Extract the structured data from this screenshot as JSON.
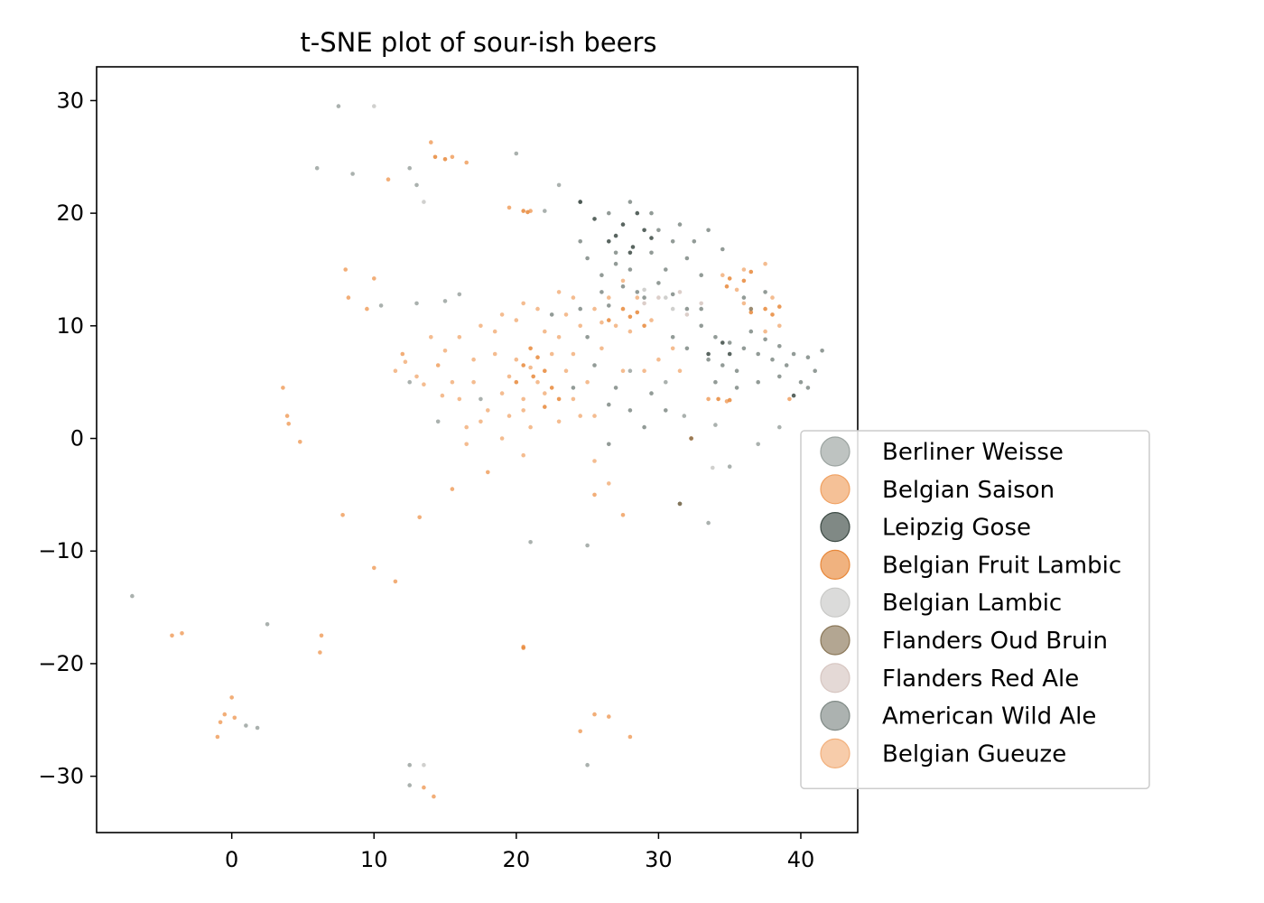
{
  "chart_data": {
    "type": "scatter",
    "title": "t-SNE plot of sour-ish beers",
    "xlabel": "",
    "ylabel": "",
    "xlim": [
      -9.5,
      44
    ],
    "ylim": [
      -35,
      33
    ],
    "x_ticks": [
      0,
      10,
      20,
      30,
      40
    ],
    "y_ticks": [
      30,
      20,
      10,
      0,
      -10,
      -20,
      -30
    ],
    "x_tick_labels": [
      "0",
      "10",
      "20",
      "30",
      "40"
    ],
    "y_tick_labels": [
      "30",
      "20",
      "10",
      "0",
      "−10",
      "−20",
      "−30"
    ],
    "grid": false,
    "legend_position": "right, partly outside the axes",
    "series": [
      {
        "name": "Berliner Weisse",
        "color": "#9ba3a0",
        "points": [
          [
            7.5,
            29.5
          ],
          [
            6,
            24
          ],
          [
            8.5,
            23.5
          ],
          [
            12.5,
            24
          ],
          [
            13,
            22.5
          ],
          [
            20,
            25.3
          ],
          [
            23,
            22.5
          ],
          [
            24.5,
            21
          ],
          [
            22,
            20.2
          ],
          [
            10.5,
            11.8
          ],
          [
            13,
            12
          ],
          [
            15,
            12.2
          ],
          [
            16,
            12.8
          ],
          [
            12.5,
            5
          ],
          [
            17.5,
            3.5
          ],
          [
            14.5,
            1.5
          ],
          [
            21,
            -9.2
          ],
          [
            25,
            -9.5
          ],
          [
            33.5,
            -7.5
          ],
          [
            35,
            -2.5
          ],
          [
            2.5,
            -16.5
          ],
          [
            -7,
            -14
          ],
          [
            1,
            -25.5
          ],
          [
            1.8,
            -25.7
          ],
          [
            12.5,
            -29
          ],
          [
            12.5,
            -30.8
          ],
          [
            25,
            -29
          ],
          [
            28,
            6
          ],
          [
            30.5,
            5
          ],
          [
            31.8,
            2
          ],
          [
            34,
            1.2
          ],
          [
            37,
            -0.5
          ],
          [
            38.5,
            1
          ]
        ]
      },
      {
        "name": "Belgian Saison",
        "color": "#f0a060",
        "points": [
          [
            14,
            26.3
          ],
          [
            15.5,
            25
          ],
          [
            16.5,
            24.5
          ],
          [
            11,
            23
          ],
          [
            19.5,
            20.5
          ],
          [
            21,
            20.2
          ],
          [
            8,
            15
          ],
          [
            10,
            14.2
          ],
          [
            8.2,
            12.5
          ],
          [
            9.5,
            11.5
          ],
          [
            3.6,
            4.5
          ],
          [
            3.9,
            2
          ],
          [
            4,
            1.3
          ],
          [
            4.8,
            -0.3
          ],
          [
            7.8,
            -6.8
          ],
          [
            10,
            -11.5
          ],
          [
            11.5,
            -12.7
          ],
          [
            6.3,
            -17.5
          ],
          [
            6.2,
            -19
          ],
          [
            -4.2,
            -17.5
          ],
          [
            -3.5,
            -17.3
          ],
          [
            -1,
            -26.5
          ],
          [
            -0.8,
            -25.2
          ],
          [
            -0.5,
            -24.5
          ],
          [
            0,
            -23
          ],
          [
            0.2,
            -24.8
          ],
          [
            13.5,
            -31
          ],
          [
            14.2,
            -31.8
          ],
          [
            24.5,
            -26
          ],
          [
            25.5,
            -24.5
          ],
          [
            26.5,
            -24.7
          ],
          [
            28,
            -26.5
          ],
          [
            20.5,
            -18.5
          ],
          [
            18,
            -3
          ],
          [
            15.5,
            -4.5
          ],
          [
            25.5,
            -5
          ],
          [
            27.5,
            -6.8
          ],
          [
            13.2,
            -7
          ],
          [
            12,
            7.5
          ],
          [
            14.5,
            6.5
          ],
          [
            33.5,
            3.5
          ],
          [
            34.8,
            3.3
          ],
          [
            39.2,
            3.5
          ],
          [
            32.3,
            0
          ]
        ]
      },
      {
        "name": "Leipzig Gose",
        "color": "#3c4a44",
        "points": [
          [
            27,
            18
          ],
          [
            27.5,
            19
          ],
          [
            28.5,
            20
          ],
          [
            28.2,
            17
          ],
          [
            29,
            18.5
          ],
          [
            26.5,
            17.5
          ],
          [
            28,
            16.5
          ],
          [
            29.5,
            17.8
          ],
          [
            24.5,
            21
          ],
          [
            25.5,
            19.5
          ],
          [
            31.5,
            -5.8
          ],
          [
            34.5,
            8.5
          ],
          [
            35,
            7.5
          ],
          [
            33.5,
            7.5
          ],
          [
            39.5,
            3.8
          ]
        ]
      },
      {
        "name": "Belgian Fruit Lambic",
        "color": "#e8883a",
        "points": [
          [
            21,
            8
          ],
          [
            21.5,
            7.2
          ],
          [
            20.5,
            6.5
          ],
          [
            22,
            6
          ],
          [
            21.2,
            5.5
          ],
          [
            22.5,
            4.5
          ],
          [
            20,
            5
          ],
          [
            23,
            3.5
          ],
          [
            22,
            2.8
          ],
          [
            26.5,
            10.5
          ],
          [
            27.5,
            11.5
          ],
          [
            28,
            10.8
          ],
          [
            28.5,
            11.2
          ],
          [
            29,
            10
          ],
          [
            36,
            14
          ],
          [
            35,
            14.2
          ],
          [
            36.5,
            14.8
          ],
          [
            34.8,
            13.5
          ],
          [
            37.5,
            11.5
          ],
          [
            38,
            11
          ],
          [
            38.5,
            11.7
          ],
          [
            36.5,
            11.2
          ],
          [
            34.2,
            3.5
          ],
          [
            35,
            3.4
          ],
          [
            14.3,
            25
          ],
          [
            15,
            24.8
          ],
          [
            20.5,
            20.2
          ],
          [
            20.8,
            20.1
          ],
          [
            20.5,
            -18.6
          ],
          [
            32.3,
            0
          ]
        ]
      },
      {
        "name": "Belgian Lambic",
        "color": "#c8c8c6",
        "points": [
          [
            33.8,
            -2.6
          ],
          [
            13.5,
            -29
          ],
          [
            10,
            29.5
          ],
          [
            13.5,
            21
          ],
          [
            30.5,
            12.5
          ],
          [
            29,
            13.2
          ],
          [
            31,
            11.5
          ]
        ]
      },
      {
        "name": "Flanders Oud Bruin",
        "color": "#8a7758",
        "points": [
          [
            32.3,
            0
          ],
          [
            31.5,
            -5.8
          ],
          [
            36.5,
            11.5
          ]
        ]
      },
      {
        "name": "Flanders Red Ale",
        "color": "#d6c5c0",
        "points": [
          [
            30,
            12.5
          ],
          [
            31.5,
            13
          ],
          [
            32,
            11
          ],
          [
            33,
            12
          ],
          [
            29,
            12
          ]
        ]
      },
      {
        "name": "American Wild Ale",
        "color": "#7f8985",
        "points": [
          [
            26,
            14.5
          ],
          [
            27,
            15.5
          ],
          [
            28,
            15
          ],
          [
            29.5,
            16.5
          ],
          [
            30.5,
            15
          ],
          [
            31,
            17.5
          ],
          [
            32,
            16
          ],
          [
            26,
            13
          ],
          [
            27.5,
            13.5
          ],
          [
            28.5,
            13
          ],
          [
            30,
            13.8
          ],
          [
            31,
            12.8
          ],
          [
            29,
            12.5
          ],
          [
            26.5,
            11.8
          ],
          [
            32,
            11.5
          ],
          [
            33,
            10
          ],
          [
            34,
            9
          ],
          [
            35,
            8.5
          ],
          [
            36,
            8
          ],
          [
            37,
            7.5
          ],
          [
            38,
            7
          ],
          [
            39,
            6.5
          ],
          [
            33.5,
            7
          ],
          [
            34.5,
            6.5
          ],
          [
            35.5,
            6
          ],
          [
            36.5,
            9.5
          ],
          [
            37.5,
            8.8
          ],
          [
            38.5,
            8.2
          ],
          [
            39.5,
            7.5
          ],
          [
            40.5,
            7.2
          ],
          [
            41,
            6
          ],
          [
            40,
            5
          ],
          [
            38.5,
            5.5
          ],
          [
            37,
            5
          ],
          [
            35.5,
            4.5
          ],
          [
            34,
            5
          ],
          [
            32,
            8
          ],
          [
            31,
            9
          ],
          [
            33,
            11.5
          ],
          [
            40.5,
            4.5
          ],
          [
            41.5,
            7.8
          ],
          [
            22.5,
            11
          ],
          [
            24.5,
            11.5
          ],
          [
            25,
            9
          ],
          [
            24,
            4.5
          ],
          [
            25.5,
            6.5
          ],
          [
            27,
            4.5
          ],
          [
            26.5,
            3
          ],
          [
            28,
            2.5
          ],
          [
            29.5,
            4
          ],
          [
            30.5,
            2.5
          ],
          [
            26.5,
            -0.5
          ],
          [
            29,
            1
          ],
          [
            37.5,
            13
          ],
          [
            36,
            12.5
          ],
          [
            33,
            14.5
          ],
          [
            30,
            18.5
          ],
          [
            31.5,
            19
          ],
          [
            32.5,
            17.5
          ],
          [
            33.5,
            18.5
          ],
          [
            34.5,
            16.8
          ],
          [
            26.5,
            20
          ],
          [
            28,
            21
          ],
          [
            29.5,
            20
          ],
          [
            24.5,
            17.5
          ],
          [
            25,
            16
          ],
          [
            27,
            16.5
          ]
        ]
      },
      {
        "name": "Belgian Gueuze",
        "color": "#f2b07c",
        "points": [
          [
            20,
            7
          ],
          [
            21,
            6.3
          ],
          [
            22.5,
            7.5
          ],
          [
            23.5,
            6
          ],
          [
            19,
            4
          ],
          [
            20.5,
            3.5
          ],
          [
            18.5,
            7.5
          ],
          [
            17,
            5
          ],
          [
            16,
            3.5
          ],
          [
            22,
            9.5
          ],
          [
            23,
            9
          ],
          [
            24,
            7.5
          ],
          [
            25,
            5
          ],
          [
            24.5,
            2
          ],
          [
            23,
            1.5
          ],
          [
            21,
            1
          ],
          [
            19.5,
            2
          ],
          [
            17.5,
            1.5
          ],
          [
            16.5,
            1
          ],
          [
            18.5,
            9.5
          ],
          [
            20,
            10.5
          ],
          [
            21.5,
            11.5
          ],
          [
            23.5,
            11
          ],
          [
            24.5,
            10
          ],
          [
            25.5,
            11.5
          ],
          [
            26.5,
            12.5
          ],
          [
            27,
            10
          ],
          [
            28,
            9.5
          ],
          [
            26,
            8
          ],
          [
            19,
            11
          ],
          [
            20.5,
            12
          ],
          [
            17,
            7
          ],
          [
            15.5,
            5
          ],
          [
            13.5,
            4.8
          ],
          [
            14,
            9
          ],
          [
            18,
            2.5
          ],
          [
            25.5,
            2
          ],
          [
            27.5,
            6
          ],
          [
            28.5,
            12.5
          ],
          [
            29.5,
            10.5
          ],
          [
            31,
            8
          ],
          [
            36,
            15
          ],
          [
            37.5,
            15.5
          ],
          [
            38.5,
            10
          ],
          [
            37.5,
            9.5
          ],
          [
            23,
            13
          ],
          [
            24,
            12.5
          ],
          [
            17.5,
            10
          ],
          [
            15,
            7.8
          ],
          [
            22,
            4
          ],
          [
            20.5,
            2.5
          ],
          [
            21.5,
            5
          ],
          [
            19.5,
            5.5
          ],
          [
            24,
            3.5
          ],
          [
            26,
            10.3
          ],
          [
            27.5,
            14
          ],
          [
            16,
            9
          ],
          [
            19,
            0
          ],
          [
            25.5,
            -2
          ],
          [
            26.5,
            -4
          ],
          [
            20.5,
            -1.5
          ],
          [
            16.5,
            -0.5
          ],
          [
            30,
            7
          ],
          [
            31.5,
            6
          ],
          [
            29,
            6
          ],
          [
            35.5,
            13.2
          ],
          [
            34.5,
            14.5
          ],
          [
            36,
            12
          ],
          [
            38,
            12.5
          ],
          [
            11.5,
            6
          ],
          [
            12.2,
            6.8
          ],
          [
            13,
            5.5
          ],
          [
            14.8,
            3.8
          ]
        ]
      }
    ]
  }
}
